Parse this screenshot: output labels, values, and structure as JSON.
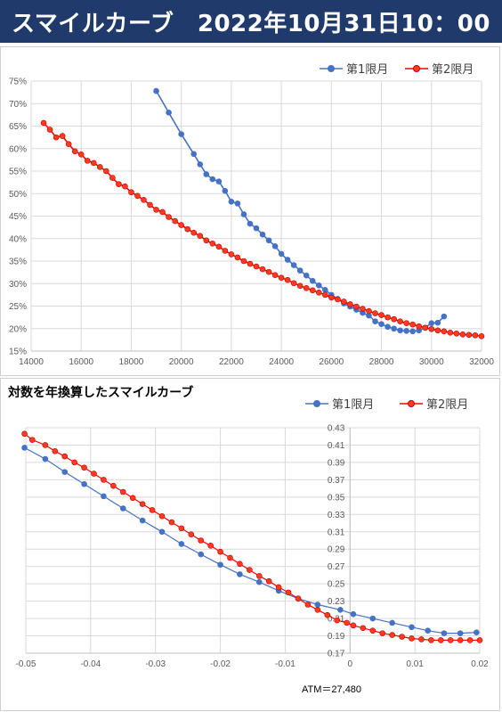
{
  "header": {
    "title": "スマイルカーブ　2022年10月31日10：00"
  },
  "chart_data": [
    {
      "type": "line",
      "title": "",
      "xlabel": "",
      "ylabel": "",
      "xlim": [
        14000,
        32000
      ],
      "ylim": [
        15,
        75
      ],
      "x_ticks": [
        14000,
        16000,
        18000,
        20000,
        22000,
        24000,
        26000,
        28000,
        30000,
        32000
      ],
      "y_ticks": [
        15,
        20,
        25,
        30,
        35,
        40,
        45,
        50,
        55,
        60,
        65,
        70,
        75
      ],
      "y_suffix": "%",
      "grid": true,
      "legend": "top-right",
      "series": [
        {
          "name": "第1限月",
          "color": "#4472c4",
          "x": [
            19000,
            19500,
            20000,
            20500,
            20750,
            21000,
            21250,
            21500,
            21750,
            22000,
            22250,
            22500,
            22750,
            23000,
            23250,
            23500,
            23750,
            24000,
            24250,
            24500,
            24750,
            25000,
            25250,
            25500,
            25750,
            26000,
            26250,
            26500,
            26750,
            27000,
            27250,
            27500,
            27750,
            28000,
            28250,
            28500,
            28750,
            29000,
            29250,
            29500,
            29750,
            30000,
            30250,
            30500
          ],
          "y": [
            72.8,
            68.0,
            63.2,
            58.8,
            56.5,
            54.3,
            53.2,
            52.7,
            50.6,
            48.2,
            47.8,
            45.4,
            43.3,
            42.3,
            40.9,
            39.6,
            38.3,
            36.6,
            35.3,
            34.1,
            32.9,
            31.8,
            30.6,
            29.6,
            28.6,
            27.5,
            26.6,
            25.6,
            24.9,
            24.2,
            23.5,
            22.9,
            21.6,
            21.0,
            20.4,
            20.0,
            19.6,
            19.5,
            19.4,
            19.6,
            20.2,
            21.2,
            21.3,
            22.7
          ]
        },
        {
          "name": "第2限月",
          "color": "#ff0000",
          "x": [
            14500,
            14750,
            15000,
            15250,
            15500,
            15750,
            16000,
            16250,
            16500,
            16750,
            17000,
            17250,
            17500,
            17750,
            18000,
            18250,
            18500,
            18750,
            19000,
            19250,
            19500,
            19750,
            20000,
            20250,
            20500,
            20750,
            21000,
            21250,
            21500,
            21750,
            22000,
            22250,
            22500,
            22750,
            23000,
            23250,
            23500,
            23750,
            24000,
            24250,
            24500,
            24750,
            25000,
            25250,
            25500,
            25750,
            26000,
            26250,
            26500,
            26750,
            27000,
            27250,
            27500,
            27750,
            28000,
            28250,
            28500,
            28750,
            29000,
            29250,
            29500,
            29750,
            30000,
            30250,
            30500,
            30750,
            31000,
            31250,
            31500,
            31750,
            32000
          ],
          "y": [
            65.7,
            64.2,
            62.5,
            62.8,
            61.0,
            59.4,
            58.7,
            57.3,
            56.8,
            55.9,
            55.0,
            53.5,
            52.1,
            51.6,
            50.3,
            49.5,
            48.6,
            47.5,
            46.4,
            45.9,
            44.8,
            43.9,
            43.0,
            42.1,
            41.3,
            40.6,
            39.6,
            38.9,
            38.2,
            37.3,
            36.5,
            35.8,
            35.0,
            34.4,
            33.8,
            33.2,
            32.6,
            31.9,
            31.3,
            30.8,
            30.1,
            29.5,
            29.0,
            28.5,
            28.0,
            27.5,
            26.9,
            26.5,
            26.0,
            25.4,
            24.9,
            24.4,
            23.9,
            23.4,
            23.0,
            22.5,
            22.1,
            21.6,
            21.2,
            20.9,
            20.5,
            20.2,
            19.9,
            19.6,
            19.4,
            19.1,
            18.9,
            18.7,
            18.6,
            18.5,
            18.3
          ]
        }
      ]
    },
    {
      "type": "line",
      "title": "対数を年換算したスマイルカーブ",
      "xlabel": "",
      "ylabel": "",
      "xlim": [
        -0.05,
        0.02
      ],
      "ylim": [
        0.17,
        0.43
      ],
      "x_ticks": [
        -0.05,
        -0.04,
        -0.03,
        -0.02,
        -0.01,
        0,
        0.01,
        0.02
      ],
      "y_ticks": [
        0.17,
        0.19,
        0.21,
        0.23,
        0.25,
        0.27,
        0.29,
        0.31,
        0.33,
        0.35,
        0.37,
        0.39,
        0.41,
        0.43
      ],
      "grid": true,
      "legend": "top-right",
      "annotation": "ATM＝27,480",
      "series": [
        {
          "name": "第1限月",
          "color": "#4472c4",
          "x": [
            -0.0502,
            -0.047,
            -0.044,
            -0.041,
            -0.038,
            -0.035,
            -0.032,
            -0.029,
            -0.026,
            -0.023,
            -0.02,
            -0.017,
            -0.014,
            -0.011,
            -0.008,
            -0.005,
            -0.0015,
            0.0005,
            0.0035,
            0.0065,
            0.0095,
            0.012,
            0.0145,
            0.017,
            0.0195
          ],
          "y": [
            0.407,
            0.394,
            0.379,
            0.365,
            0.351,
            0.337,
            0.323,
            0.31,
            0.296,
            0.284,
            0.272,
            0.261,
            0.252,
            0.242,
            0.233,
            0.226,
            0.22,
            0.215,
            0.21,
            0.205,
            0.2,
            0.196,
            0.193,
            0.193,
            0.194
          ]
        },
        {
          "name": "第2限月",
          "color": "#ff0000",
          "x": [
            -0.0502,
            -0.049,
            -0.047,
            -0.0455,
            -0.044,
            -0.0425,
            -0.041,
            -0.0395,
            -0.038,
            -0.0365,
            -0.035,
            -0.0335,
            -0.032,
            -0.0305,
            -0.029,
            -0.0275,
            -0.026,
            -0.0245,
            -0.023,
            -0.0215,
            -0.02,
            -0.0185,
            -0.017,
            -0.0155,
            -0.014,
            -0.0125,
            -0.011,
            -0.0095,
            -0.008,
            -0.0065,
            -0.005,
            -0.0035,
            -0.002,
            -0.0005,
            0.0005,
            0.002,
            0.0035,
            0.005,
            0.0065,
            0.008,
            0.0095,
            0.011,
            0.0125,
            0.014,
            0.0155,
            0.017,
            0.0185,
            0.02
          ],
          "y": [
            0.423,
            0.416,
            0.41,
            0.403,
            0.397,
            0.39,
            0.384,
            0.377,
            0.37,
            0.363,
            0.356,
            0.349,
            0.342,
            0.335,
            0.328,
            0.321,
            0.314,
            0.307,
            0.3,
            0.294,
            0.287,
            0.28,
            0.273,
            0.266,
            0.259,
            0.253,
            0.246,
            0.24,
            0.233,
            0.226,
            0.22,
            0.214,
            0.208,
            0.205,
            0.202,
            0.199,
            0.196,
            0.193,
            0.191,
            0.189,
            0.187,
            0.186,
            0.185,
            0.185,
            0.185,
            0.185,
            0.185,
            0.185
          ]
        }
      ]
    }
  ]
}
